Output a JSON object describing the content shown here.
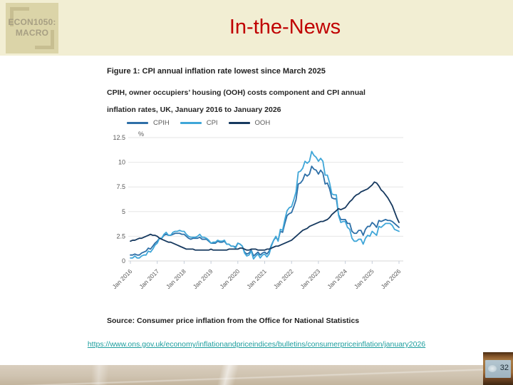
{
  "slide": {
    "title": "In-the-News",
    "number": "32",
    "logo": {
      "line1": "ECON1050:",
      "line2": "MACRO"
    }
  },
  "figure": {
    "title": "Figure 1: CPI annual inflation rate lowest since March 2025",
    "subtitle_line1": "CPIH, owner occupiers’ housing (OOH) costs component and CPI annual",
    "subtitle_line2": "inflation rates, UK, January 2016 to January 2026",
    "source": "Source: Consumer price inflation from the Office for National Statistics",
    "link": "https://www.ons.gov.uk/economy/inflationandpriceindices/bulletins/consumerpriceinflation/january2026"
  },
  "chart_data": {
    "type": "line",
    "title": "Figure 1: CPI annual inflation rate lowest since March 2025",
    "xlabel": "",
    "ylabel": "%",
    "ylim": [
      0,
      12.5
    ],
    "yticks": [
      0,
      2.5,
      5,
      7.5,
      10,
      12.5
    ],
    "grid": true,
    "legend_position": "top",
    "x_unit": "monthly, Jan 2016 to Jan 2026",
    "x_tick_labels": [
      "Jan 2016",
      "Jan 2017",
      "Jan 2018",
      "Jan 2019",
      "Jan 2020",
      "Jan 2021",
      "Jan 2022",
      "Jan 2023",
      "Jan 2024",
      "Jan 2025",
      "Jan 2026"
    ],
    "series": [
      {
        "name": "CPIH",
        "color": "#2e6fa7",
        "values": [
          0.6,
          0.6,
          0.7,
          0.6,
          0.6,
          0.8,
          0.9,
          1.0,
          1.3,
          1.2,
          1.5,
          1.8,
          2.0,
          2.3,
          2.3,
          2.6,
          2.7,
          2.6,
          2.6,
          2.7,
          2.8,
          2.8,
          2.8,
          2.7,
          2.7,
          2.5,
          2.3,
          2.2,
          2.3,
          2.3,
          2.3,
          2.4,
          2.2,
          2.2,
          2.2,
          2.0,
          1.8,
          1.8,
          1.8,
          2.0,
          1.9,
          1.9,
          2.0,
          1.7,
          1.7,
          1.5,
          1.5,
          1.4,
          1.8,
          1.7,
          1.5,
          0.9,
          0.7,
          0.8,
          1.1,
          0.5,
          0.7,
          0.9,
          0.6,
          0.8,
          0.9,
          0.7,
          1.0,
          1.6,
          2.1,
          2.4,
          2.1,
          3.0,
          2.9,
          3.8,
          4.6,
          4.8,
          4.9,
          5.5,
          6.2,
          7.8,
          7.9,
          8.2,
          8.8,
          8.6,
          8.8,
          9.6,
          9.3,
          9.2,
          8.8,
          9.2,
          8.9,
          7.8,
          7.9,
          7.3,
          6.4,
          6.3,
          6.3,
          4.7,
          4.2,
          4.2,
          4.2,
          3.8,
          3.8,
          3.0,
          2.8,
          2.8,
          3.1,
          3.1,
          2.6,
          3.2,
          3.5,
          3.5,
          3.9,
          3.7,
          3.4,
          4.1,
          4.0,
          4.1,
          4.2,
          4.1,
          4.1,
          4.0,
          3.8,
          3.6,
          3.4
        ]
      },
      {
        "name": "CPI",
        "color": "#3fa6d8",
        "values": [
          0.3,
          0.3,
          0.5,
          0.3,
          0.3,
          0.5,
          0.6,
          0.6,
          1.0,
          0.9,
          1.2,
          1.6,
          1.8,
          2.3,
          2.3,
          2.7,
          2.9,
          2.6,
          2.6,
          2.9,
          3.0,
          3.0,
          3.1,
          3.0,
          3.0,
          2.7,
          2.5,
          2.4,
          2.4,
          2.4,
          2.5,
          2.7,
          2.4,
          2.4,
          2.3,
          2.1,
          1.8,
          1.9,
          1.9,
          2.1,
          2.0,
          2.0,
          2.1,
          1.7,
          1.7,
          1.5,
          1.5,
          1.3,
          1.8,
          1.7,
          1.5,
          0.8,
          0.5,
          0.6,
          1.0,
          0.2,
          0.5,
          0.7,
          0.3,
          0.6,
          0.7,
          0.4,
          0.7,
          1.5,
          2.1,
          2.5,
          2.0,
          3.2,
          3.1,
          4.2,
          5.1,
          5.4,
          5.5,
          6.2,
          7.0,
          9.0,
          9.1,
          9.4,
          10.1,
          9.9,
          10.1,
          11.1,
          10.7,
          10.5,
          10.1,
          10.4,
          10.1,
          8.7,
          8.7,
          7.9,
          6.8,
          6.7,
          6.7,
          4.6,
          3.9,
          4.0,
          4.0,
          3.4,
          3.2,
          2.3,
          2.0,
          2.0,
          2.2,
          2.2,
          1.7,
          2.3,
          2.6,
          2.5,
          3.0,
          2.8,
          2.6,
          3.5,
          3.4,
          3.6,
          3.8,
          3.8,
          3.8,
          3.6,
          3.2,
          3.1,
          3.0
        ]
      },
      {
        "name": "OOH",
        "color": "#16395f",
        "values": [
          2.0,
          2.1,
          2.1,
          2.2,
          2.3,
          2.3,
          2.4,
          2.5,
          2.6,
          2.7,
          2.6,
          2.6,
          2.5,
          2.3,
          2.2,
          2.1,
          2.0,
          1.9,
          1.9,
          1.8,
          1.7,
          1.6,
          1.5,
          1.4,
          1.3,
          1.2,
          1.2,
          1.2,
          1.2,
          1.1,
          1.1,
          1.1,
          1.1,
          1.1,
          1.1,
          1.1,
          1.2,
          1.1,
          1.1,
          1.1,
          1.1,
          1.1,
          1.1,
          1.1,
          1.2,
          1.2,
          1.2,
          1.2,
          1.2,
          1.3,
          1.3,
          1.2,
          1.1,
          1.1,
          1.2,
          1.2,
          1.2,
          1.1,
          1.1,
          1.1,
          1.1,
          1.2,
          1.2,
          1.3,
          1.4,
          1.5,
          1.5,
          1.6,
          1.7,
          1.8,
          1.9,
          2.0,
          2.1,
          2.3,
          2.5,
          2.7,
          2.9,
          3.1,
          3.2,
          3.3,
          3.5,
          3.6,
          3.7,
          3.8,
          3.9,
          4.0,
          4.0,
          4.1,
          4.2,
          4.4,
          4.7,
          4.9,
          5.1,
          5.3,
          5.2,
          5.3,
          5.4,
          5.7,
          6.0,
          6.2,
          6.5,
          6.7,
          6.8,
          7.0,
          7.1,
          7.2,
          7.3,
          7.5,
          7.7,
          8.0,
          7.9,
          7.6,
          7.2,
          7.0,
          6.7,
          6.4,
          6.0,
          5.6,
          5.0,
          4.4,
          3.9
        ]
      }
    ]
  },
  "colors": {
    "header_bg": "#f2eed3",
    "title_red": "#c00000",
    "link_teal": "#1d9e9e",
    "grid": "#e6e6e6",
    "axis_text": "#595959"
  }
}
